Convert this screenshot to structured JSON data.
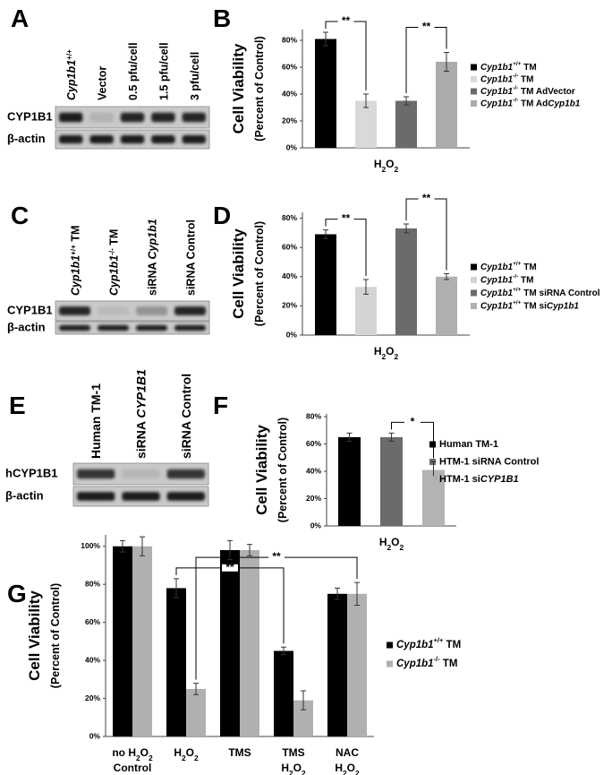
{
  "blots": [
    {
      "letter": "A",
      "lanes": [
        "Cyp1b1+/+",
        "Vector",
        "0.5 pfu/cell",
        "1.5 pfu/cell",
        "3 pfu/cell"
      ],
      "rows": [
        "CYP1B1",
        "β-actin"
      ]
    },
    {
      "letter": "C",
      "lanes": [
        "Cyp1b1+/+ TM",
        "Cyp1b1-/- TM",
        "siRNA Cyp1b1",
        "siRNA Control"
      ],
      "rows": [
        "CYP1B1",
        "β-actin"
      ]
    },
    {
      "letter": "E",
      "lanes": [
        "Human TM-1",
        "siRNA CYP1B1",
        "siRNA Control"
      ],
      "rows": [
        "hCYP1B1",
        "β-actin"
      ]
    }
  ],
  "chart_data": [
    {
      "letter": "B",
      "type": "bar",
      "y_label": "Cell Viability",
      "y_sublabel": "(Percent of Control)",
      "categories": [
        [
          "H2O2"
        ]
      ],
      "series": [
        {
          "name": "Cyp1b1+/+ TM",
          "color": "#000000",
          "values": [
            81
          ],
          "errors": [
            5
          ]
        },
        {
          "name": "Cyp1b1-/- TM",
          "color": "#d9d9d9",
          "values": [
            35
          ],
          "errors": [
            5
          ]
        },
        {
          "name": "Cyp1b1-/- TM AdVector",
          "color": "#6b6b6b",
          "values": [
            35
          ],
          "errors": [
            3
          ]
        },
        {
          "name": "Cyp1b1-/- TM AdCyp1b1",
          "color": "#ababab",
          "values": [
            64
          ],
          "errors": [
            7
          ]
        }
      ],
      "ylim": [
        0,
        88
      ],
      "yticks": [
        {
          "value": 0,
          "label": "0%"
        },
        {
          "value": 20,
          "label": "20%"
        },
        {
          "value": 40,
          "label": "40%"
        },
        {
          "value": 60,
          "label": "60%"
        },
        {
          "value": 80,
          "label": "80%"
        }
      ],
      "annotations": [
        {
          "from": [
            0,
            0
          ],
          "to": [
            0,
            1
          ],
          "label": "**"
        },
        {
          "from": [
            0,
            2
          ],
          "to": [
            0,
            3
          ],
          "label": "**"
        }
      ]
    },
    {
      "letter": "D",
      "type": "bar",
      "y_label": "Cell Viability",
      "y_sublabel": "(Percent of Control)",
      "categories": [
        [
          "H2O2"
        ]
      ],
      "series": [
        {
          "name": "Cyp1b1+/+ TM",
          "color": "#000000",
          "values": [
            69
          ],
          "errors": [
            3
          ]
        },
        {
          "name": "Cyp1b1-/- TM",
          "color": "#d4d4d4",
          "values": [
            33
          ],
          "errors": [
            5
          ]
        },
        {
          "name": "Cyp1b1+/+ TM siRNA Control",
          "color": "#6b6b6b",
          "values": [
            73
          ],
          "errors": [
            3
          ]
        },
        {
          "name": "Cyp1b1+/+ TM siCyp1b1",
          "color": "#b0b0b0",
          "values": [
            40
          ],
          "errors": [
            2
          ]
        }
      ],
      "ylim": [
        0,
        84
      ],
      "yticks": [
        {
          "value": 0,
          "label": "0%"
        },
        {
          "value": 20,
          "label": "20%"
        },
        {
          "value": 40,
          "label": "40%"
        },
        {
          "value": 60,
          "label": "60%"
        },
        {
          "value": 80,
          "label": "80%"
        }
      ],
      "annotations": [
        {
          "from": [
            0,
            0
          ],
          "to": [
            0,
            1
          ],
          "label": "**"
        },
        {
          "from": [
            0,
            2
          ],
          "to": [
            0,
            3
          ],
          "label": "**"
        }
      ]
    },
    {
      "letter": "F",
      "type": "bar",
      "y_label": "Cell Viability",
      "y_sublabel": "(Percent of Control)",
      "categories": [
        [
          "H2O2"
        ]
      ],
      "series": [
        {
          "name": "Human TM-1",
          "color": "#000000",
          "values": [
            65
          ],
          "errors": [
            3
          ]
        },
        {
          "name": "HTM-1 siRNA Control",
          "color": "#6b6b6b",
          "values": [
            65
          ],
          "errors": [
            3
          ]
        },
        {
          "name": "HTM-1 siCYP1B1",
          "color": "#b3b3b3",
          "values": [
            41
          ],
          "errors": [
            6
          ]
        }
      ],
      "ylim": [
        0,
        82
      ],
      "yticks": [
        {
          "value": 0,
          "label": "0%"
        },
        {
          "value": 20,
          "label": "20%"
        },
        {
          "value": 40,
          "label": "40%"
        },
        {
          "value": 60,
          "label": "60%"
        },
        {
          "value": 80,
          "label": "80%"
        }
      ],
      "annotations": [
        {
          "from": [
            0,
            1
          ],
          "to": [
            0,
            2
          ],
          "label": "*"
        }
      ]
    },
    {
      "letter": "G",
      "type": "bar",
      "y_label": "Cell Viability",
      "y_sublabel": "(Percent of Control)",
      "categories": [
        [
          "no H2O2",
          "Control"
        ],
        [
          "H2O2"
        ],
        [
          "TMS"
        ],
        [
          "TMS",
          "H2O2"
        ],
        [
          "NAC",
          "H2O2"
        ]
      ],
      "series": [
        {
          "name": "Cyp1b1+/+ TM",
          "color": "#000000",
          "values": [
            100,
            78,
            98,
            45,
            75
          ],
          "errors": [
            3,
            5,
            5,
            2,
            3
          ]
        },
        {
          "name": "Cyp1b1-/- TM",
          "color": "#b0b0b0",
          "values": [
            100,
            25,
            98,
            19,
            75
          ],
          "errors": [
            5,
            3,
            3,
            5,
            6
          ]
        }
      ],
      "ylim": [
        0,
        106
      ],
      "yticks": [
        {
          "value": 0,
          "label": "0%"
        },
        {
          "value": 20,
          "label": "20%"
        },
        {
          "value": 40,
          "label": "40%"
        },
        {
          "value": 60,
          "label": "60%"
        },
        {
          "value": 80,
          "label": "80%"
        },
        {
          "value": 100,
          "label": "100%"
        }
      ],
      "annotations": [
        {
          "from": [
            1,
            0
          ],
          "to": [
            3,
            0
          ],
          "label": "**"
        },
        {
          "from": [
            1,
            1
          ],
          "to": [
            4,
            1
          ],
          "label": "**"
        }
      ]
    }
  ]
}
